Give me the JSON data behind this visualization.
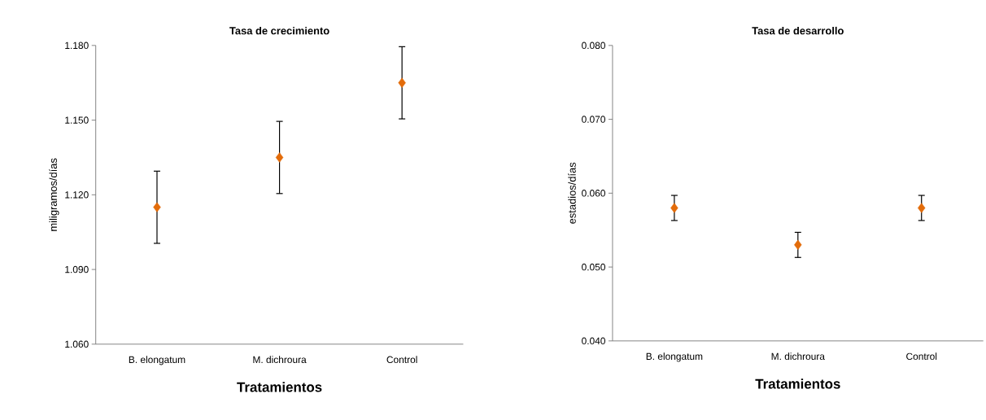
{
  "chart_data": [
    {
      "type": "scatter",
      "title": "Tasa de crecimiento",
      "xlabel": "Tratamientos",
      "ylabel": "miligramos/días",
      "categories": [
        "B. elongatum",
        "M. dichroura",
        "Control"
      ],
      "values": [
        1.115,
        1.135,
        1.165
      ],
      "errors": [
        0.0145,
        0.0145,
        0.0145
      ],
      "color": "#e36c0a",
      "marker": "diamond",
      "ylim": [
        1.06,
        1.18
      ],
      "yticks": [
        {
          "value": 1.06,
          "label": "1.060"
        },
        {
          "value": 1.09,
          "label": "1.090"
        },
        {
          "value": 1.12,
          "label": "1.120"
        },
        {
          "value": 1.15,
          "label": "1.150"
        },
        {
          "value": 1.18,
          "label": "1.180"
        }
      ]
    },
    {
      "type": "scatter",
      "title": "Tasa de desarrollo",
      "xlabel": "Tratamientos",
      "ylabel": "estadios/días",
      "categories": [
        "B. elongatum",
        "M. dichroura",
        "Control"
      ],
      "values": [
        0.058,
        0.053,
        0.058
      ],
      "errors": [
        0.0017,
        0.0017,
        0.0017
      ],
      "color": "#e36c0a",
      "marker": "diamond",
      "ylim": [
        0.04,
        0.08
      ],
      "yticks": [
        {
          "value": 0.04,
          "label": "0.040"
        },
        {
          "value": 0.05,
          "label": "0.050"
        },
        {
          "value": 0.06,
          "label": "0.060"
        },
        {
          "value": 0.07,
          "label": "0.070"
        },
        {
          "value": 0.08,
          "label": "0.080"
        }
      ]
    }
  ]
}
